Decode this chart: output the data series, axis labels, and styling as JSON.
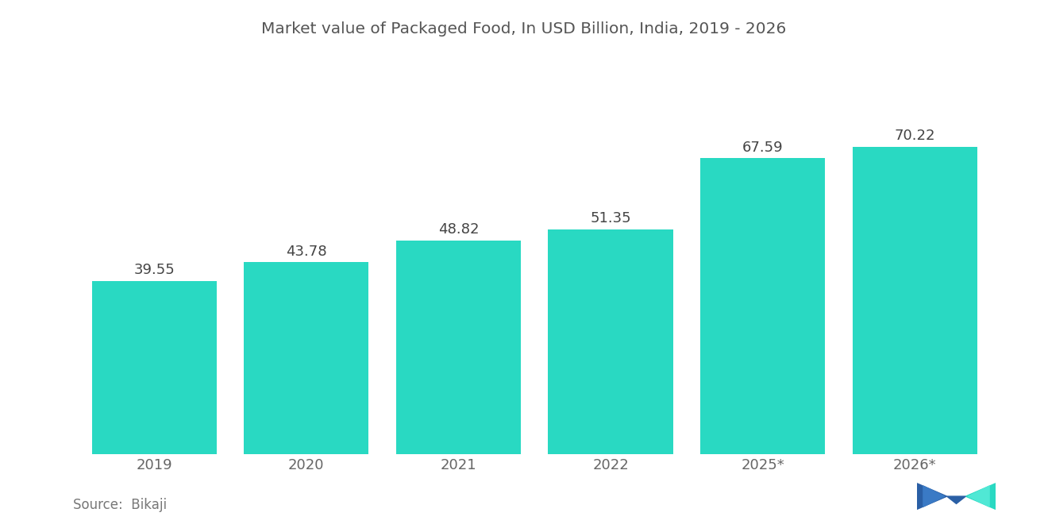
{
  "title": "Market value of Packaged Food, In USD Billion, India, 2019 - 2026",
  "categories": [
    "2019",
    "2020",
    "2021",
    "2022",
    "2025*",
    "2026*"
  ],
  "values": [
    39.55,
    43.78,
    48.82,
    51.35,
    67.59,
    70.22
  ],
  "bar_color": "#29D9C2",
  "background_color": "#ffffff",
  "title_color": "#555555",
  "label_color": "#666666",
  "value_label_color": "#444444",
  "source_text": "Source:  Bikaji",
  "source_color": "#777777",
  "title_fontsize": 14.5,
  "label_fontsize": 13,
  "value_fontsize": 13,
  "source_fontsize": 12,
  "ylim": [
    0,
    88
  ],
  "bar_width": 0.82
}
